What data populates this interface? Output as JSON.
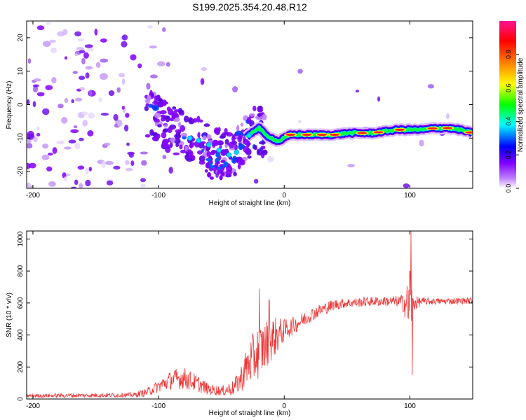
{
  "title": "S199.2025.354.20.48.R12",
  "chart_data": [
    {
      "type": "heatmap",
      "name": "spectrogram",
      "xlabel": "Height of straight line (km)",
      "ylabel": "Frequency (Hz)",
      "xlim": [
        -205,
        150
      ],
      "ylim": [
        -25,
        25
      ],
      "x_ticks": [
        -200,
        -100,
        0,
        100
      ],
      "y_ticks": [
        -20,
        -10,
        0,
        10,
        20
      ],
      "ridge": {
        "x": [
          -105,
          -95,
          -85,
          -75,
          -65,
          -55,
          -45,
          -40,
          -35,
          -30,
          -25,
          -20,
          -15,
          -10,
          -5,
          0,
          5,
          10,
          20,
          30,
          40,
          50,
          60,
          70,
          80,
          90,
          100,
          110,
          120,
          130,
          140,
          150
        ],
        "freq": [
          -3,
          -6,
          -8,
          -10,
          -11,
          -13,
          -15,
          -15,
          -13,
          -10,
          -8,
          -7,
          -9,
          -10,
          -11,
          -10,
          -9,
          -9,
          -9,
          -9,
          -9,
          -8.5,
          -8.5,
          -8.5,
          -8,
          -7.5,
          -7.5,
          -7.5,
          -7,
          -7,
          -7.5,
          -8.5
        ]
      },
      "colorbar": {
        "label": "Normalized spectral amplitude",
        "range": [
          0,
          1
        ],
        "ticks": [
          "0.0",
          "0.2",
          "0.4",
          "0.6",
          "0.8"
        ],
        "colors": [
          "#ffffff",
          "#8000ff",
          "#0000ff",
          "#00ffff",
          "#00ff00",
          "#ffff00",
          "#ff8000",
          "#ff0000",
          "#ff1493"
        ]
      }
    },
    {
      "type": "line",
      "name": "snr",
      "xlabel": "Height of straight line (km)",
      "ylabel": "SNR (10 * v/v)",
      "xlim": [
        -205,
        150
      ],
      "ylim": [
        0,
        1050
      ],
      "x_ticks": [
        -200,
        -100,
        0,
        100
      ],
      "y_ticks": [
        0,
        200,
        400,
        600,
        800,
        1000
      ],
      "color": "#ee3333",
      "envelope": {
        "x": [
          -205,
          -120,
          -110,
          -100,
          -90,
          -80,
          -70,
          -60,
          -50,
          -40,
          -35,
          -30,
          -25,
          -20,
          -15,
          -10,
          -5,
          0,
          10,
          20,
          30,
          40,
          50,
          60,
          70,
          80,
          90,
          95,
          100,
          103,
          106,
          110,
          120,
          150
        ],
        "mean": [
          20,
          25,
          40,
          80,
          120,
          130,
          100,
          60,
          50,
          70,
          120,
          200,
          250,
          300,
          330,
          380,
          400,
          430,
          470,
          520,
          560,
          590,
          600,
          605,
          610,
          610,
          610,
          600,
          580,
          600,
          605,
          610,
          610,
          615
        ],
        "noise": [
          12,
          15,
          25,
          40,
          60,
          70,
          55,
          35,
          30,
          50,
          80,
          120,
          160,
          170,
          160,
          140,
          110,
          70,
          50,
          45,
          40,
          35,
          30,
          30,
          30,
          30,
          35,
          60,
          200,
          60,
          35,
          25,
          20,
          20
        ]
      },
      "spikes": [
        {
          "x": -20,
          "y": 690
        },
        {
          "x": -12,
          "y": 620
        },
        {
          "x": 100,
          "y": 800
        },
        {
          "x": 101,
          "y": 1050
        },
        {
          "x": 102,
          "y": 150
        }
      ]
    }
  ]
}
